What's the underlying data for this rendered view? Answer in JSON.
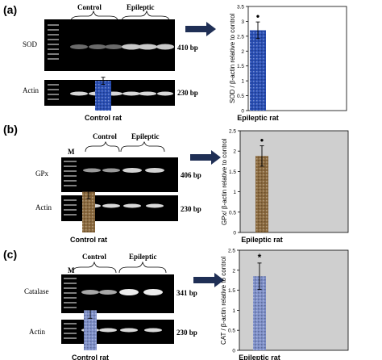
{
  "figure": {
    "panels": [
      {
        "id": "a",
        "label": "(a)",
        "gel": {
          "marker": "M",
          "groups": [
            "Control",
            "Epileptic"
          ],
          "rows": [
            {
              "name": "SOD",
              "size": "410 bp"
            },
            {
              "name": "Actin",
              "size": "230 bp"
            }
          ]
        }
      },
      {
        "id": "b",
        "label": "(b)",
        "gel": {
          "marker": "M",
          "groups": [
            "Control",
            "Epileptic"
          ],
          "rows": [
            {
              "name": "GPx",
              "size": "406 bp"
            },
            {
              "name": "Actin",
              "size": "230 bp"
            }
          ]
        }
      },
      {
        "id": "c",
        "label": "(c)",
        "gel": {
          "marker": "M",
          "groups": [
            "Control",
            "Epileptic"
          ],
          "rows": [
            {
              "name": "Catalase",
              "size": "341 bp"
            },
            {
              "name": "Actin",
              "size": "230 bp"
            }
          ]
        }
      }
    ]
  },
  "chart_data": [
    {
      "type": "bar",
      "categories": [
        "Control rat",
        "Epileptic rat"
      ],
      "values": [
        1.0,
        2.7
      ],
      "errors": [
        0.12,
        0.28
      ],
      "significance": [
        "",
        "•"
      ],
      "title": "",
      "xlabel": "",
      "ylabel": "SOD / β-actin relative to control",
      "ylim": [
        0,
        3.5
      ],
      "yticks": [
        "0",
        "0.5",
        "1",
        "1.5",
        "2",
        "2.5",
        "3",
        "3.5"
      ],
      "grid": false,
      "bar_color": "#2a4fb5",
      "background": "#ffffff"
    },
    {
      "type": "bar",
      "categories": [
        "Control rat",
        "Epileptic rat"
      ],
      "values": [
        1.0,
        1.88
      ],
      "errors": [
        0.17,
        0.25
      ],
      "significance": [
        "",
        "•"
      ],
      "title": "",
      "xlabel": "",
      "ylabel": "GPx/ β-actin relative to control",
      "ylim": [
        0,
        2.5
      ],
      "yticks": [
        "0",
        "0.5",
        "1",
        "1.5",
        "2",
        "2.5"
      ],
      "grid": false,
      "bar_color": "#8b6a3e",
      "background": "#cfcfcf"
    },
    {
      "type": "bar",
      "categories": [
        "Control rat",
        "Epileptic rat"
      ],
      "values": [
        1.0,
        1.85
      ],
      "errors": [
        0.2,
        0.33
      ],
      "significance": [
        "",
        "*"
      ],
      "title": "",
      "xlabel": "",
      "ylabel": "CAT / β-actin relative to control",
      "ylim": [
        0,
        2.5
      ],
      "yticks": [
        "0",
        "0.5",
        "1",
        "1.5",
        "2",
        "2.5"
      ],
      "grid": false,
      "bar_color": "#7e8fc8",
      "background": "#cfcfcf"
    }
  ]
}
